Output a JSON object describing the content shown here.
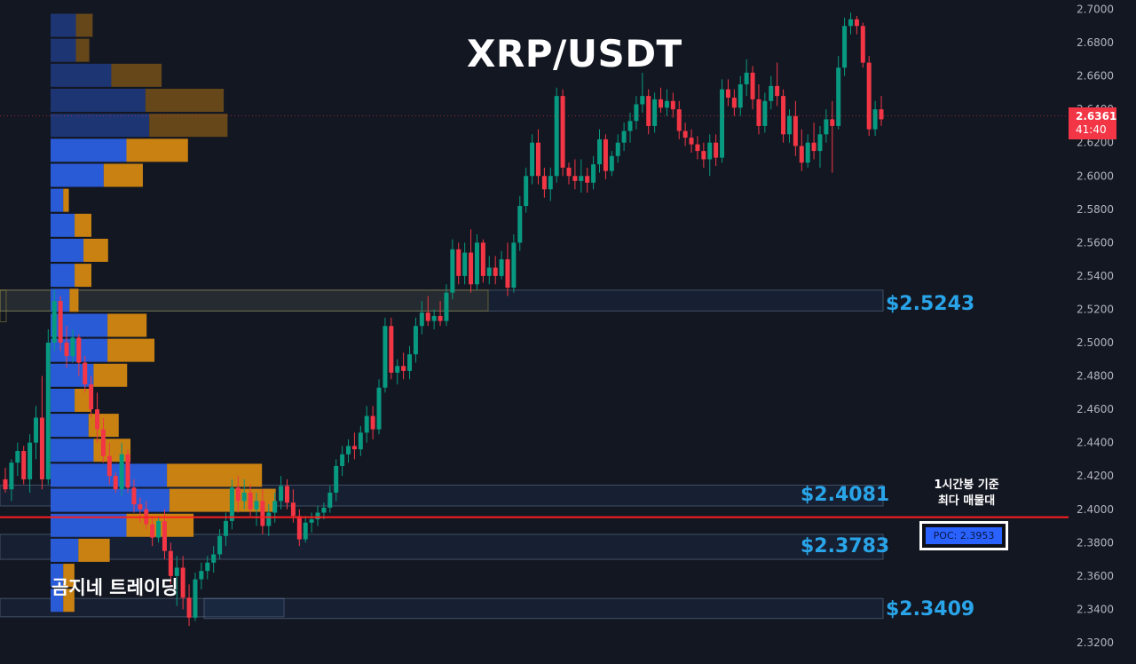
{
  "title": "XRP/USDT",
  "watermark": "곰지네 트레이딩",
  "note": {
    "line1": "1시간봉 기준",
    "line2": "최다 매물대"
  },
  "poc_label": "POC: 2.3953",
  "current_price": {
    "value": "2.6361",
    "countdown": "41:40"
  },
  "levels": [
    {
      "label": "$2.5243",
      "price": 2.5243
    },
    {
      "label": "$2.4081",
      "price": 2.4081
    },
    {
      "label": "$2.3783",
      "price": 2.3783
    },
    {
      "label": "$2.3409",
      "price": 2.3409
    }
  ],
  "colors": {
    "up": "#089981",
    "down": "#f23645",
    "vol_buy": "#2a5bd7",
    "vol_sell": "#c98212",
    "level_text": "#29a4e8",
    "poc_line": "#ff1f1f"
  },
  "chart_data": {
    "type": "candlestick",
    "title": "XRP/USDT",
    "ylim": [
      2.31,
      2.705
    ],
    "y_ticks": [
      "2.7000",
      "2.6800",
      "2.6600",
      "2.6400",
      "2.6200",
      "2.6000",
      "2.5800",
      "2.5600",
      "2.5400",
      "2.5200",
      "2.5000",
      "2.4800",
      "2.4600",
      "2.4400",
      "2.4200",
      "2.4000",
      "2.3800",
      "2.3600",
      "2.3400",
      "2.3200"
    ],
    "poc": 2.3953,
    "ohlc": [
      [
        2.418,
        2.425,
        2.41,
        2.412
      ],
      [
        2.412,
        2.43,
        2.405,
        2.428
      ],
      [
        2.428,
        2.44,
        2.42,
        2.435
      ],
      [
        2.435,
        2.438,
        2.415,
        2.418
      ],
      [
        2.418,
        2.445,
        2.41,
        2.44
      ],
      [
        2.44,
        2.462,
        2.43,
        2.455
      ],
      [
        2.455,
        2.48,
        2.412,
        2.418
      ],
      [
        2.418,
        2.508,
        2.415,
        2.5
      ],
      [
        2.5,
        2.532,
        2.495,
        2.525
      ],
      [
        2.525,
        2.528,
        2.495,
        2.5
      ],
      [
        2.5,
        2.51,
        2.485,
        2.492
      ],
      [
        2.492,
        2.508,
        2.488,
        2.503
      ],
      [
        2.503,
        2.505,
        2.48,
        2.488
      ],
      [
        2.488,
        2.492,
        2.47,
        2.475
      ],
      [
        2.475,
        2.48,
        2.455,
        2.46
      ],
      [
        2.46,
        2.47,
        2.44,
        2.448
      ],
      [
        2.448,
        2.455,
        2.428,
        2.432
      ],
      [
        2.432,
        2.44,
        2.415,
        2.42
      ],
      [
        2.42,
        2.422,
        2.41,
        2.412
      ],
      [
        2.412,
        2.44,
        2.408,
        2.433
      ],
      [
        2.433,
        2.436,
        2.41,
        2.413
      ],
      [
        2.413,
        2.418,
        2.398,
        2.403
      ],
      [
        2.403,
        2.407,
        2.392,
        2.4
      ],
      [
        2.4,
        2.405,
        2.388,
        2.391
      ],
      [
        2.391,
        2.396,
        2.378,
        2.383
      ],
      [
        2.383,
        2.396,
        2.38,
        2.393
      ],
      [
        2.393,
        2.4,
        2.37,
        2.375
      ],
      [
        2.375,
        2.38,
        2.355,
        2.36
      ],
      [
        2.36,
        2.372,
        2.342,
        2.365
      ],
      [
        2.365,
        2.372,
        2.34,
        2.347
      ],
      [
        2.347,
        2.355,
        2.33,
        2.335
      ],
      [
        2.335,
        2.362,
        2.333,
        2.358
      ],
      [
        2.358,
        2.368,
        2.352,
        2.363
      ],
      [
        2.363,
        2.372,
        2.358,
        2.368
      ],
      [
        2.368,
        2.378,
        2.362,
        2.373
      ],
      [
        2.373,
        2.388,
        2.37,
        2.384
      ],
      [
        2.384,
        2.398,
        2.378,
        2.393
      ],
      [
        2.393,
        2.418,
        2.388,
        2.413
      ],
      [
        2.413,
        2.42,
        2.398,
        2.405
      ],
      [
        2.405,
        2.418,
        2.4,
        2.41
      ],
      [
        2.41,
        2.415,
        2.396,
        2.4
      ],
      [
        2.4,
        2.41,
        2.39,
        2.405
      ],
      [
        2.405,
        2.412,
        2.385,
        2.39
      ],
      [
        2.39,
        2.403,
        2.384,
        2.398
      ],
      [
        2.398,
        2.41,
        2.392,
        2.405
      ],
      [
        2.405,
        2.42,
        2.4,
        2.414
      ],
      [
        2.414,
        2.418,
        2.4,
        2.404
      ],
      [
        2.404,
        2.412,
        2.392,
        2.396
      ],
      [
        2.396,
        2.4,
        2.378,
        2.382
      ],
      [
        2.382,
        2.396,
        2.38,
        2.392
      ],
      [
        2.392,
        2.398,
        2.386,
        2.394
      ],
      [
        2.394,
        2.402,
        2.39,
        2.398
      ],
      [
        2.398,
        2.404,
        2.394,
        2.401
      ],
      [
        2.401,
        2.414,
        2.398,
        2.41
      ],
      [
        2.41,
        2.43,
        2.405,
        2.426
      ],
      [
        2.426,
        2.438,
        2.42,
        2.433
      ],
      [
        2.433,
        2.442,
        2.428,
        2.438
      ],
      [
        2.438,
        2.446,
        2.43,
        2.436
      ],
      [
        2.436,
        2.45,
        2.432,
        2.446
      ],
      [
        2.446,
        2.462,
        2.44,
        2.456
      ],
      [
        2.456,
        2.462,
        2.442,
        2.448
      ],
      [
        2.448,
        2.478,
        2.445,
        2.473
      ],
      [
        2.473,
        2.515,
        2.47,
        2.51
      ],
      [
        2.51,
        2.515,
        2.478,
        2.482
      ],
      [
        2.482,
        2.49,
        2.475,
        2.486
      ],
      [
        2.486,
        2.494,
        2.478,
        2.483
      ],
      [
        2.483,
        2.498,
        2.478,
        2.493
      ],
      [
        2.493,
        2.515,
        2.488,
        2.51
      ],
      [
        2.51,
        2.525,
        2.505,
        2.518
      ],
      [
        2.518,
        2.528,
        2.51,
        2.513
      ],
      [
        2.513,
        2.52,
        2.508,
        2.516
      ],
      [
        2.516,
        2.525,
        2.51,
        2.513
      ],
      [
        2.513,
        2.535,
        2.51,
        2.53
      ],
      [
        2.53,
        2.562,
        2.526,
        2.556
      ],
      [
        2.556,
        2.56,
        2.535,
        2.54
      ],
      [
        2.54,
        2.56,
        2.535,
        2.554
      ],
      [
        2.554,
        2.568,
        2.53,
        2.535
      ],
      [
        2.535,
        2.565,
        2.532,
        2.56
      ],
      [
        2.56,
        2.562,
        2.536,
        2.54
      ],
      [
        2.54,
        2.552,
        2.535,
        2.545
      ],
      [
        2.545,
        2.552,
        2.535,
        2.54
      ],
      [
        2.54,
        2.555,
        2.538,
        2.55
      ],
      [
        2.55,
        2.56,
        2.528,
        2.533
      ],
      [
        2.533,
        2.565,
        2.53,
        2.56
      ],
      [
        2.56,
        2.588,
        2.555,
        2.582
      ],
      [
        2.582,
        2.605,
        2.578,
        2.6
      ],
      [
        2.6,
        2.625,
        2.595,
        2.62
      ],
      [
        2.62,
        2.628,
        2.595,
        2.6
      ],
      [
        2.6,
        2.605,
        2.587,
        2.592
      ],
      [
        2.592,
        2.605,
        2.585,
        2.6
      ],
      [
        2.6,
        2.653,
        2.596,
        2.648
      ],
      [
        2.648,
        2.652,
        2.6,
        2.605
      ],
      [
        2.605,
        2.608,
        2.595,
        2.6
      ],
      [
        2.6,
        2.61,
        2.592,
        2.597
      ],
      [
        2.597,
        2.61,
        2.59,
        2.6
      ],
      [
        2.6,
        2.605,
        2.59,
        2.596
      ],
      [
        2.596,
        2.612,
        2.592,
        2.607
      ],
      [
        2.607,
        2.628,
        2.602,
        2.622
      ],
      [
        2.622,
        2.625,
        2.598,
        2.603
      ],
      [
        2.603,
        2.615,
        2.6,
        2.612
      ],
      [
        2.612,
        2.625,
        2.608,
        2.62
      ],
      [
        2.62,
        2.632,
        2.615,
        2.627
      ],
      [
        2.627,
        2.638,
        2.62,
        2.633
      ],
      [
        2.633,
        2.648,
        2.628,
        2.643
      ],
      [
        2.643,
        2.662,
        2.638,
        2.648
      ],
      [
        2.648,
        2.652,
        2.625,
        2.63
      ],
      [
        2.63,
        2.65,
        2.626,
        2.646
      ],
      [
        2.646,
        2.653,
        2.638,
        2.641
      ],
      [
        2.641,
        2.652,
        2.636,
        2.645
      ],
      [
        2.645,
        2.65,
        2.635,
        2.64
      ],
      [
        2.64,
        2.645,
        2.622,
        2.627
      ],
      [
        2.627,
        2.632,
        2.618,
        2.623
      ],
      [
        2.623,
        2.628,
        2.614,
        2.619
      ],
      [
        2.619,
        2.624,
        2.61,
        2.615
      ],
      [
        2.615,
        2.62,
        2.605,
        2.61
      ],
      [
        2.61,
        2.625,
        2.6,
        2.62
      ],
      [
        2.62,
        2.625,
        2.606,
        2.611
      ],
      [
        2.611,
        2.658,
        2.608,
        2.652
      ],
      [
        2.652,
        2.658,
        2.642,
        2.647
      ],
      [
        2.647,
        2.652,
        2.636,
        2.641
      ],
      [
        2.641,
        2.66,
        2.636,
        2.655
      ],
      [
        2.655,
        2.67,
        2.648,
        2.662
      ],
      [
        2.662,
        2.666,
        2.64,
        2.646
      ],
      [
        2.646,
        2.655,
        2.625,
        2.63
      ],
      [
        2.63,
        2.65,
        2.626,
        2.645
      ],
      [
        2.645,
        2.66,
        2.64,
        2.654
      ],
      [
        2.654,
        2.668,
        2.642,
        2.648
      ],
      [
        2.648,
        2.652,
        2.62,
        2.625
      ],
      [
        2.625,
        2.64,
        2.62,
        2.636
      ],
      [
        2.636,
        2.645,
        2.612,
        2.618
      ],
      [
        2.618,
        2.628,
        2.603,
        2.608
      ],
      [
        2.608,
        2.625,
        2.605,
        2.62
      ],
      [
        2.62,
        2.632,
        2.61,
        2.615
      ],
      [
        2.615,
        2.63,
        2.605,
        2.625
      ],
      [
        2.625,
        2.64,
        2.62,
        2.634
      ],
      [
        2.634,
        2.645,
        2.602,
        2.63
      ],
      [
        2.63,
        2.672,
        2.628,
        2.665
      ],
      [
        2.665,
        2.695,
        2.66,
        2.69
      ],
      [
        2.69,
        2.698,
        2.685,
        2.694
      ],
      [
        2.694,
        2.696,
        2.685,
        2.69
      ],
      [
        2.69,
        2.692,
        2.665,
        2.668
      ],
      [
        2.668,
        2.672,
        2.624,
        2.628
      ],
      [
        2.628,
        2.645,
        2.624,
        2.64
      ],
      [
        2.64,
        2.648,
        2.63,
        2.634
      ]
    ],
    "volume_profile_left": [
      [
        2.7,
        0.2,
        0.15
      ],
      [
        2.685,
        0.2,
        0.12
      ],
      [
        2.67,
        0.48,
        0.45
      ],
      [
        2.655,
        0.75,
        0.7
      ],
      [
        2.64,
        0.78,
        0.7
      ],
      [
        2.625,
        0.6,
        0.55
      ],
      [
        2.61,
        0.42,
        0.35
      ],
      [
        2.595,
        0.1,
        0.05
      ],
      [
        2.58,
        0.19,
        0.15
      ],
      [
        2.565,
        0.26,
        0.22
      ],
      [
        2.55,
        0.19,
        0.15
      ],
      [
        2.535,
        0.15,
        0.08
      ],
      [
        2.52,
        0.45,
        0.35
      ],
      [
        2.505,
        0.45,
        0.42
      ],
      [
        2.49,
        0.34,
        0.3
      ],
      [
        2.475,
        0.19,
        0.15
      ],
      [
        2.46,
        0.3,
        0.27
      ],
      [
        2.445,
        0.34,
        0.33
      ],
      [
        2.43,
        0.92,
        0.85
      ],
      [
        2.415,
        0.94,
        0.95
      ],
      [
        2.4,
        0.6,
        0.6
      ],
      [
        2.385,
        0.22,
        0.28
      ],
      [
        2.37,
        0.1,
        0.1
      ],
      [
        2.355,
        0.1,
        0.1
      ]
    ]
  }
}
